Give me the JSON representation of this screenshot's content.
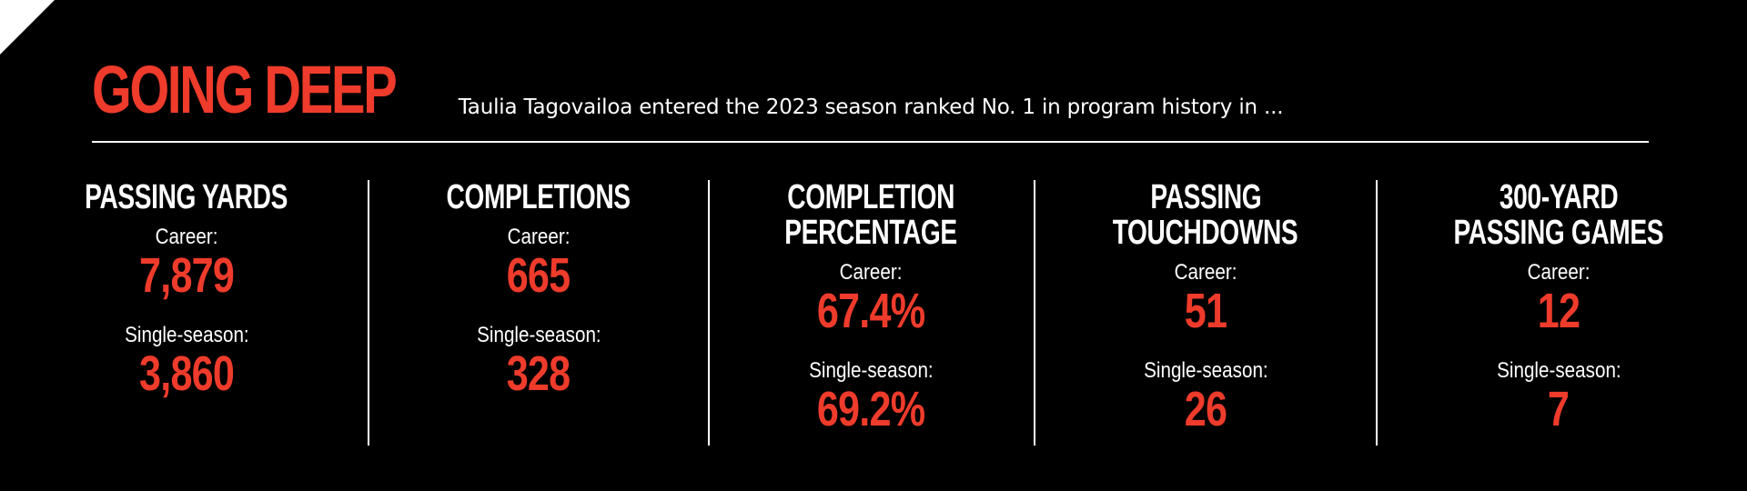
{
  "header": {
    "title": "GOING DEEP",
    "subtitle": "Taulia Tagovailoa entered the 2023 season ranked No. 1 in program history in ..."
  },
  "stats": [
    {
      "label_lines": [
        "PASSING YARDS"
      ],
      "career_label": "Career:",
      "career_value": "7,879",
      "season_label": "Single-season:",
      "season_value": "3,860"
    },
    {
      "label_lines": [
        "COMPLETIONS"
      ],
      "career_label": "Career:",
      "career_value": "665",
      "season_label": "Single-season:",
      "season_value": "328"
    },
    {
      "label_lines": [
        "COMPLETION",
        "PERCENTAGE"
      ],
      "career_label": "Career:",
      "career_value": "67.4%",
      "season_label": "Single-season:",
      "season_value": "69.2%"
    },
    {
      "label_lines": [
        "PASSING",
        "TOUCHDOWNS"
      ],
      "career_label": "Career:",
      "career_value": "51",
      "season_label": "Single-season:",
      "season_value": "26"
    },
    {
      "label_lines": [
        "300-YARD",
        "PASSING GAMES"
      ],
      "career_label": "Career:",
      "career_value": "12",
      "season_label": "Single-season:",
      "season_value": "7"
    }
  ],
  "colors": {
    "accent": "#ee3b2b",
    "background": "#000000",
    "text": "#ffffff"
  }
}
